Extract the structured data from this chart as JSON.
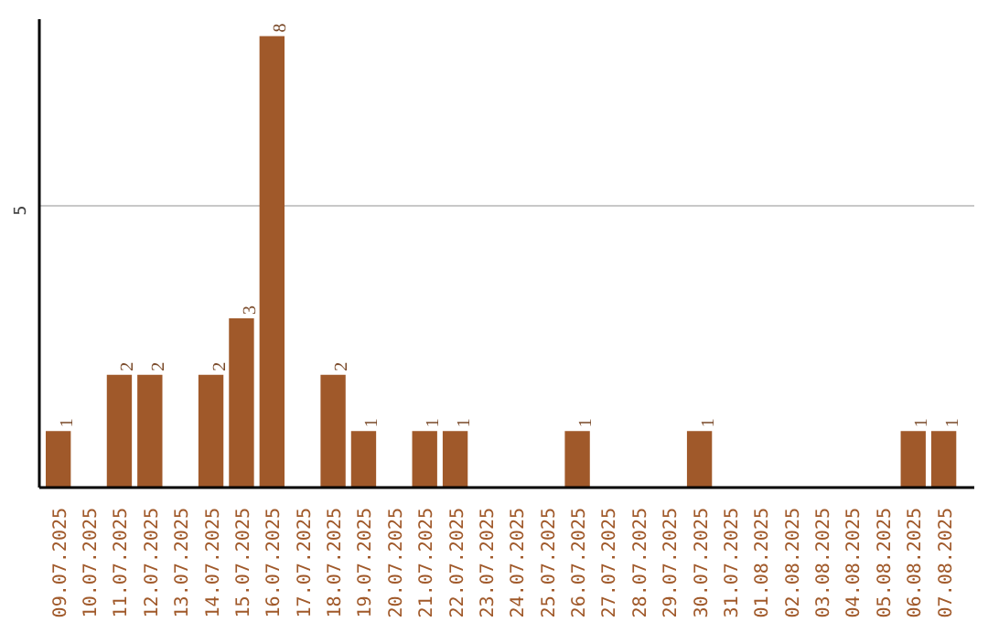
{
  "chart_data": {
    "type": "bar",
    "categories": [
      "09.07.2025",
      "10.07.2025",
      "11.07.2025",
      "12.07.2025",
      "13.07.2025",
      "14.07.2025",
      "15.07.2025",
      "16.07.2025",
      "17.07.2025",
      "18.07.2025",
      "19.07.2025",
      "20.07.2025",
      "21.07.2025",
      "22.07.2025",
      "23.07.2025",
      "24.07.2025",
      "25.07.2025",
      "26.07.2025",
      "27.07.2025",
      "28.07.2025",
      "29.07.2025",
      "30.07.2025",
      "31.07.2025",
      "01.08.2025",
      "02.08.2025",
      "03.08.2025",
      "04.08.2025",
      "05.08.2025",
      "06.08.2025",
      "07.08.2025"
    ],
    "values": [
      1,
      0,
      2,
      2,
      0,
      2,
      3,
      8,
      0,
      2,
      1,
      0,
      1,
      1,
      0,
      0,
      0,
      1,
      0,
      0,
      0,
      1,
      0,
      0,
      0,
      0,
      0,
      0,
      1,
      1
    ],
    "value_labels": [
      "1",
      null,
      "2",
      "2",
      null,
      "2",
      "3",
      "8",
      null,
      "2",
      "1",
      null,
      "1",
      "1",
      null,
      null,
      null,
      "1",
      null,
      null,
      null,
      "1",
      null,
      null,
      null,
      null,
      null,
      null,
      "1",
      "1"
    ],
    "color": "#a0592a",
    "ylim": [
      0,
      8.3
    ],
    "yticks": [
      5
    ],
    "grid": "y"
  }
}
